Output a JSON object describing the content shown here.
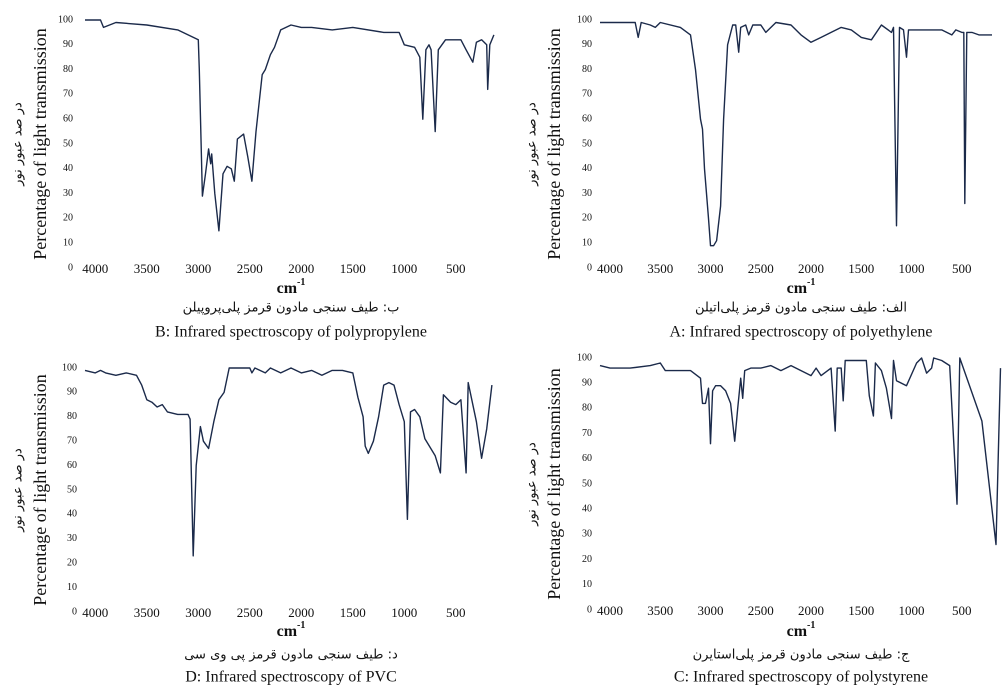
{
  "chart_data": [
    {
      "type": "line",
      "caption_fa": "ب: طیف سنجی مادون قرمز پلی‌پروپیلن",
      "title": "B: Infrared spectroscopy of polypropylene",
      "ylabel": "Percentage of light transmission",
      "ylabel_fa": "در صد عبور نور",
      "xlabel": "cm",
      "xlabel_sup": "-1",
      "color": "#1b2a4a",
      "xlim": [
        4100,
        100
      ],
      "xticks": [
        4000,
        3500,
        3000,
        2500,
        2000,
        1500,
        1000,
        500
      ],
      "ylim": [
        0,
        100
      ],
      "yticks": [
        0,
        10,
        20,
        30,
        40,
        50,
        60,
        70,
        80,
        90,
        100
      ],
      "x": [
        4100,
        4000,
        3950,
        3920,
        3800,
        3500,
        3200,
        3000,
        2990,
        2960,
        2930,
        2900,
        2880,
        2870,
        2840,
        2800,
        2760,
        2720,
        2680,
        2650,
        2620,
        2560,
        2520,
        2480,
        2440,
        2380,
        2350,
        2300,
        2260,
        2200,
        2100,
        2000,
        1900,
        1700,
        1500,
        1200,
        1050,
        1000,
        900,
        850,
        820,
        790,
        760,
        740,
        700,
        670,
        600,
        500,
        450,
        400,
        335,
        300,
        250,
        200,
        190,
        170,
        130
      ],
      "values": [
        100,
        100,
        100,
        97,
        99,
        98,
        96,
        92,
        80,
        29,
        38,
        48,
        42,
        46,
        30,
        15,
        38,
        41,
        40,
        35,
        52,
        54,
        45,
        35,
        55,
        78,
        80,
        86,
        89,
        96,
        98,
        97,
        97,
        96,
        97,
        95,
        95,
        90,
        89,
        85,
        60,
        88,
        90,
        88,
        55,
        88,
        92,
        92,
        92,
        88,
        83,
        91,
        92,
        90,
        72,
        90,
        94
      ]
    },
    {
      "type": "line",
      "caption_fa": "الف: طیف سنجی مادون قرمز پلی‌اتیلن",
      "title": "A: Infrared spectroscopy of polyethylene",
      "ylabel": "Percentage of light transmission",
      "ylabel_fa": "در صد عبور نور",
      "xlabel": "cm",
      "xlabel_sup": "-1",
      "color": "#1b2a4a",
      "xlim": [
        4100,
        100
      ],
      "xticks": [
        4000,
        3500,
        3000,
        2500,
        2000,
        1500,
        1000,
        500
      ],
      "ylim": [
        0,
        100
      ],
      "yticks": [
        0,
        10,
        20,
        30,
        40,
        50,
        60,
        70,
        80,
        90,
        100
      ],
      "x": [
        4100,
        4000,
        3800,
        3750,
        3720,
        3690,
        3600,
        3550,
        3500,
        3300,
        3200,
        3150,
        3100,
        3080,
        3060,
        3040,
        3020,
        3000,
        2970,
        2940,
        2900,
        2870,
        2830,
        2780,
        2750,
        2720,
        2700,
        2650,
        2620,
        2580,
        2500,
        2450,
        2350,
        2200,
        2100,
        2000,
        1900,
        1800,
        1700,
        1600,
        1500,
        1400,
        1300,
        1200,
        1180,
        1150,
        1120,
        1080,
        1050,
        1030,
        900,
        700,
        600,
        560,
        500,
        480,
        470,
        450,
        400,
        330,
        200
      ],
      "values": [
        99,
        99,
        99,
        99,
        93,
        99,
        98,
        97,
        99,
        97,
        94,
        80,
        60,
        56,
        40,
        30,
        20,
        9,
        9,
        11,
        25,
        60,
        90,
        98,
        98,
        87,
        97,
        98,
        94,
        98,
        98,
        95,
        99,
        98,
        94,
        91,
        93,
        95,
        97,
        96,
        93,
        92,
        98,
        95,
        97,
        17,
        97,
        96,
        85,
        96,
        96,
        96,
        94,
        96,
        95,
        95,
        26,
        95,
        95,
        94,
        94
      ]
    },
    {
      "type": "line",
      "caption_fa": "د: طیف سنجی مادون قرمز پی وی سی",
      "title": "D: Infrared spectroscopy of PVC",
      "ylabel": "Percentage of light transmission",
      "ylabel_fa": "در صد عبور نور",
      "xlabel": "cm",
      "xlabel_sup": "-1",
      "color": "#1b2a4a",
      "xlim": [
        4100,
        100
      ],
      "xticks": [
        4000,
        3500,
        3000,
        2500,
        2000,
        1500,
        1000,
        500
      ],
      "ylim": [
        0,
        100
      ],
      "yticks": [
        0,
        10,
        20,
        30,
        40,
        50,
        60,
        70,
        80,
        90,
        100
      ],
      "x": [
        4100,
        4000,
        3950,
        3900,
        3800,
        3700,
        3600,
        3550,
        3500,
        3450,
        3400,
        3350,
        3300,
        3200,
        3100,
        3080,
        3050,
        3020,
        2980,
        2950,
        2900,
        2850,
        2800,
        2750,
        2700,
        2600,
        2500,
        2480,
        2450,
        2350,
        2300,
        2200,
        2100,
        2000,
        1900,
        1800,
        1700,
        1600,
        1500,
        1450,
        1400,
        1380,
        1350,
        1300,
        1250,
        1200,
        1150,
        1100,
        1050,
        1000,
        970,
        940,
        900,
        850,
        800,
        700,
        650,
        620,
        550,
        500,
        450,
        400,
        380,
        300,
        250,
        200,
        150
      ],
      "values": [
        99,
        98,
        99,
        98,
        97,
        98,
        97,
        93,
        87,
        86,
        84,
        85,
        82,
        81,
        81,
        79,
        23,
        60,
        76,
        70,
        67,
        78,
        87,
        90,
        100,
        100,
        100,
        98,
        100,
        98,
        100,
        98,
        100,
        98,
        99,
        97,
        99,
        99,
        98,
        88,
        80,
        68,
        65,
        70,
        80,
        93,
        94,
        93,
        85,
        78,
        38,
        82,
        83,
        80,
        71,
        64,
        57,
        89,
        86,
        85,
        87,
        57,
        94,
        78,
        63,
        75,
        93
      ]
    },
    {
      "type": "line",
      "caption_fa": "ج: طیف سنجی مادون قرمز پلی‌استایرن",
      "title": "C: Infrared spectroscopy of polystyrene",
      "ylabel": "Percentage of light transmission",
      "ylabel_fa": "در صد عبور نور",
      "xlabel": "cm",
      "xlabel_sup": "-1",
      "color": "#1b2a4a",
      "xlim": [
        4100,
        100
      ],
      "xticks": [
        4000,
        3500,
        3000,
        2500,
        2000,
        1500,
        1000,
        500
      ],
      "ylim": [
        0,
        100
      ],
      "yticks": [
        0,
        10,
        20,
        30,
        40,
        50,
        60,
        70,
        80,
        90,
        100
      ],
      "x": [
        4100,
        4000,
        3800,
        3600,
        3500,
        3450,
        3200,
        3100,
        3080,
        3050,
        3020,
        3000,
        2980,
        2950,
        2900,
        2850,
        2800,
        2760,
        2730,
        2700,
        2680,
        2660,
        2600,
        2500,
        2400,
        2300,
        2200,
        2100,
        2000,
        1950,
        1900,
        1800,
        1760,
        1740,
        1700,
        1680,
        1660,
        1500,
        1450,
        1420,
        1380,
        1360,
        1300,
        1250,
        1200,
        1180,
        1150,
        1050,
        950,
        900,
        850,
        800,
        780,
        700,
        620,
        548,
        520,
        300,
        160,
        115
      ],
      "values": [
        97,
        96,
        96,
        97,
        98,
        95,
        95,
        92,
        82,
        82,
        88,
        66,
        87,
        89,
        89,
        87,
        82,
        67,
        80,
        92,
        84,
        95,
        96,
        96,
        97,
        95,
        97,
        95,
        93,
        96,
        93,
        96,
        71,
        96,
        96,
        83,
        99,
        99,
        99,
        85,
        77,
        98,
        95,
        88,
        76,
        99,
        91,
        89,
        98,
        100,
        94,
        96,
        100,
        99,
        97,
        42,
        100,
        75,
        26,
        96
      ]
    }
  ]
}
